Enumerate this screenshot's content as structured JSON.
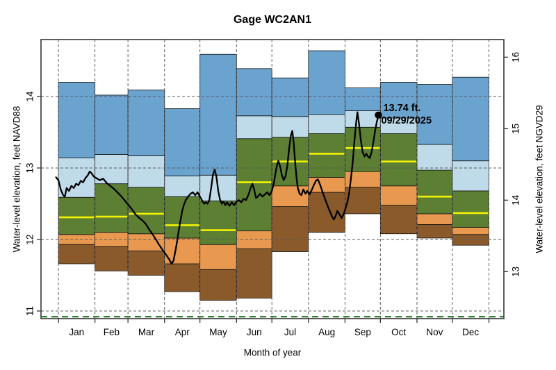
{
  "title": "Gage WC2AN1",
  "axes": {
    "left_label": "Water-level elevation, feet NAVD88",
    "right_label": "Water-level elevation, feet NGVD29",
    "x_label": "Month of year",
    "left_ticks": [
      11,
      12,
      13,
      14
    ],
    "right_ticks": [
      13,
      14,
      15,
      16
    ],
    "right_axis_offset_ft": 1.45
  },
  "annotation": {
    "value_label": "13.74 ft.",
    "date_label": "09/29/2025",
    "day_of_year": 271.3,
    "value_ft": 13.74
  },
  "reference_line": {
    "value_ft": 10.92,
    "color": "#0e6b0e"
  },
  "colors": {
    "band_min_p10": "#8B5A2B",
    "band_p10_p25": "#E8994F",
    "band_p25_p75": "#5C7F33",
    "band_p75_p90": "#BFDBE9",
    "band_p90_max": "#6BA3CF",
    "median": "#F3F300",
    "band_outline": "#111111",
    "current_line": "#000000",
    "grid": "#5a5a5a",
    "frame": "#4a4a4a"
  },
  "chart_data": {
    "type": "band+line",
    "title": "Gage WC2AN1",
    "xlabel": "Month of year",
    "ylabel_left": "Water-level elevation, feet NAVD88",
    "ylabel_right": "Water-level elevation, feet NGVD29",
    "ylim_ft": [
      10.89,
      14.8
    ],
    "y_gridlines": [
      11,
      12,
      13,
      14
    ],
    "grid": "dashed",
    "legend_position": "none",
    "months": [
      "Jan",
      "Feb",
      "Mar",
      "Apr",
      "May",
      "Jun",
      "Jul",
      "Aug",
      "Sep",
      "Oct",
      "Nov",
      "Dec"
    ],
    "month_days": [
      31,
      28,
      31,
      30,
      31,
      30,
      31,
      31,
      30,
      31,
      30,
      31
    ],
    "percentile_series": [
      {
        "name": "min",
        "values": [
          11.66,
          11.56,
          11.5,
          11.27,
          11.15,
          11.18,
          11.83,
          12.1,
          12.36,
          12.08,
          12.02,
          11.92
        ]
      },
      {
        "name": "p10",
        "values": [
          11.93,
          11.9,
          11.84,
          11.66,
          11.58,
          11.87,
          12.46,
          12.66,
          12.73,
          12.48,
          12.21,
          12.07
        ]
      },
      {
        "name": "p25",
        "values": [
          12.07,
          12.1,
          12.08,
          12.02,
          11.93,
          12.12,
          12.75,
          12.87,
          12.95,
          12.75,
          12.36,
          12.17
        ]
      },
      {
        "name": "median",
        "values": [
          12.31,
          12.32,
          12.36,
          12.2,
          12.13,
          12.8,
          13.09,
          13.2,
          13.28,
          13.09,
          12.6,
          12.37
        ]
      },
      {
        "name": "p75",
        "values": [
          12.59,
          12.78,
          12.73,
          12.6,
          12.54,
          13.41,
          13.43,
          13.48,
          13.57,
          13.48,
          12.97,
          12.68
        ]
      },
      {
        "name": "p90",
        "values": [
          13.14,
          13.19,
          13.17,
          12.89,
          12.9,
          13.73,
          13.72,
          13.75,
          13.8,
          13.7,
          13.33,
          13.1
        ]
      },
      {
        "name": "max",
        "values": [
          14.2,
          14.02,
          14.09,
          13.83,
          14.59,
          14.39,
          14.26,
          14.64,
          14.12,
          14.2,
          14.17,
          14.27
        ]
      }
    ],
    "current_line_points_day_ft": [
      [
        -2,
        12.87
      ],
      [
        0,
        12.83
      ],
      [
        2,
        12.7
      ],
      [
        4,
        12.62
      ],
      [
        5.5,
        12.6
      ],
      [
        7,
        12.72
      ],
      [
        9,
        12.68
      ],
      [
        11,
        12.75
      ],
      [
        13,
        12.72
      ],
      [
        15,
        12.78
      ],
      [
        17,
        12.76
      ],
      [
        19,
        12.82
      ],
      [
        21,
        12.8
      ],
      [
        23,
        12.86
      ],
      [
        25,
        12.9
      ],
      [
        26.5,
        12.95
      ],
      [
        28,
        12.93
      ],
      [
        30,
        12.88
      ],
      [
        32,
        12.86
      ],
      [
        35,
        12.83
      ],
      [
        38,
        12.85
      ],
      [
        41,
        12.79
      ],
      [
        44,
        12.75
      ],
      [
        47,
        12.71
      ],
      [
        50,
        12.66
      ],
      [
        53,
        12.61
      ],
      [
        56,
        12.55
      ],
      [
        59,
        12.49
      ],
      [
        62,
        12.43
      ],
      [
        65,
        12.36
      ],
      [
        68,
        12.31
      ],
      [
        71,
        12.27
      ],
      [
        74,
        12.22
      ],
      [
        77,
        12.14
      ],
      [
        80,
        12.07
      ],
      [
        83,
        11.99
      ],
      [
        86,
        11.91
      ],
      [
        89,
        11.84
      ],
      [
        92,
        11.77
      ],
      [
        94,
        11.72
      ],
      [
        96,
        11.66
      ],
      [
        97.5,
        11.7
      ],
      [
        99,
        11.82
      ],
      [
        100.5,
        11.96
      ],
      [
        102,
        12.12
      ],
      [
        103.5,
        12.27
      ],
      [
        105,
        12.4
      ],
      [
        106.5,
        12.49
      ],
      [
        108,
        12.55
      ],
      [
        110,
        12.6
      ],
      [
        112,
        12.64
      ],
      [
        114,
        12.66
      ],
      [
        116,
        12.62
      ],
      [
        118,
        12.66
      ],
      [
        120,
        12.6
      ],
      [
        122,
        12.54
      ],
      [
        123.5,
        12.5
      ],
      [
        125,
        12.52
      ],
      [
        126.5,
        12.5
      ],
      [
        128,
        12.55
      ],
      [
        129.5,
        12.72
      ],
      [
        131,
        12.9
      ],
      [
        132.5,
        12.98
      ],
      [
        134,
        12.88
      ],
      [
        135.5,
        12.68
      ],
      [
        137,
        12.56
      ],
      [
        138.5,
        12.5
      ],
      [
        140,
        12.53
      ],
      [
        141.5,
        12.48
      ],
      [
        143,
        12.52
      ],
      [
        145,
        12.47
      ],
      [
        147,
        12.52
      ],
      [
        149,
        12.48
      ],
      [
        151,
        12.53
      ],
      [
        153,
        12.55
      ],
      [
        155,
        12.52
      ],
      [
        157,
        12.57
      ],
      [
        159,
        12.55
      ],
      [
        161,
        12.62
      ],
      [
        163,
        12.72
      ],
      [
        164.5,
        12.78
      ],
      [
        166,
        12.7
      ],
      [
        167.5,
        12.58
      ],
      [
        169,
        12.6
      ],
      [
        171,
        12.64
      ],
      [
        173,
        12.6
      ],
      [
        175,
        12.63
      ],
      [
        177,
        12.66
      ],
      [
        179,
        12.62
      ],
      [
        181,
        12.68
      ],
      [
        182.5,
        12.78
      ],
      [
        184,
        12.92
      ],
      [
        185.5,
        13.05
      ],
      [
        186.5,
        13.1
      ],
      [
        188,
        13.02
      ],
      [
        189.5,
        12.9
      ],
      [
        191,
        12.83
      ],
      [
        192.5,
        12.88
      ],
      [
        194,
        13.02
      ],
      [
        195.5,
        13.25
      ],
      [
        197,
        13.45
      ],
      [
        198.3,
        13.52
      ],
      [
        199.5,
        13.35
      ],
      [
        200.6,
        13.1
      ],
      [
        201.8,
        12.88
      ],
      [
        203,
        12.72
      ],
      [
        204.5,
        12.64
      ],
      [
        206,
        12.62
      ],
      [
        207.7,
        12.7
      ],
      [
        209.5,
        12.64
      ],
      [
        211,
        12.68
      ],
      [
        213,
        12.63
      ],
      [
        215,
        12.7
      ],
      [
        216.5,
        12.76
      ],
      [
        218.3,
        12.82
      ],
      [
        220,
        12.84
      ],
      [
        222,
        12.76
      ],
      [
        224,
        12.66
      ],
      [
        226,
        12.57
      ],
      [
        228,
        12.48
      ],
      [
        230,
        12.4
      ],
      [
        232,
        12.32
      ],
      [
        233.5,
        12.28
      ],
      [
        235,
        12.33
      ],
      [
        236.5,
        12.4
      ],
      [
        238,
        12.36
      ],
      [
        240,
        12.3
      ],
      [
        242,
        12.36
      ],
      [
        243.5,
        12.44
      ],
      [
        245,
        12.52
      ],
      [
        246.5,
        12.65
      ],
      [
        248,
        12.85
      ],
      [
        249.5,
        13.08
      ],
      [
        251,
        13.38
      ],
      [
        252.5,
        13.65
      ],
      [
        253.5,
        13.78
      ],
      [
        255,
        13.6
      ],
      [
        256.5,
        13.38
      ],
      [
        258,
        13.22
      ],
      [
        259.5,
        13.16
      ],
      [
        261,
        13.2
      ],
      [
        262.5,
        13.16
      ],
      [
        264,
        13.14
      ],
      [
        265.5,
        13.22
      ],
      [
        267,
        13.36
      ],
      [
        268.5,
        13.52
      ],
      [
        270,
        13.65
      ],
      [
        271.3,
        13.73
      ]
    ]
  }
}
